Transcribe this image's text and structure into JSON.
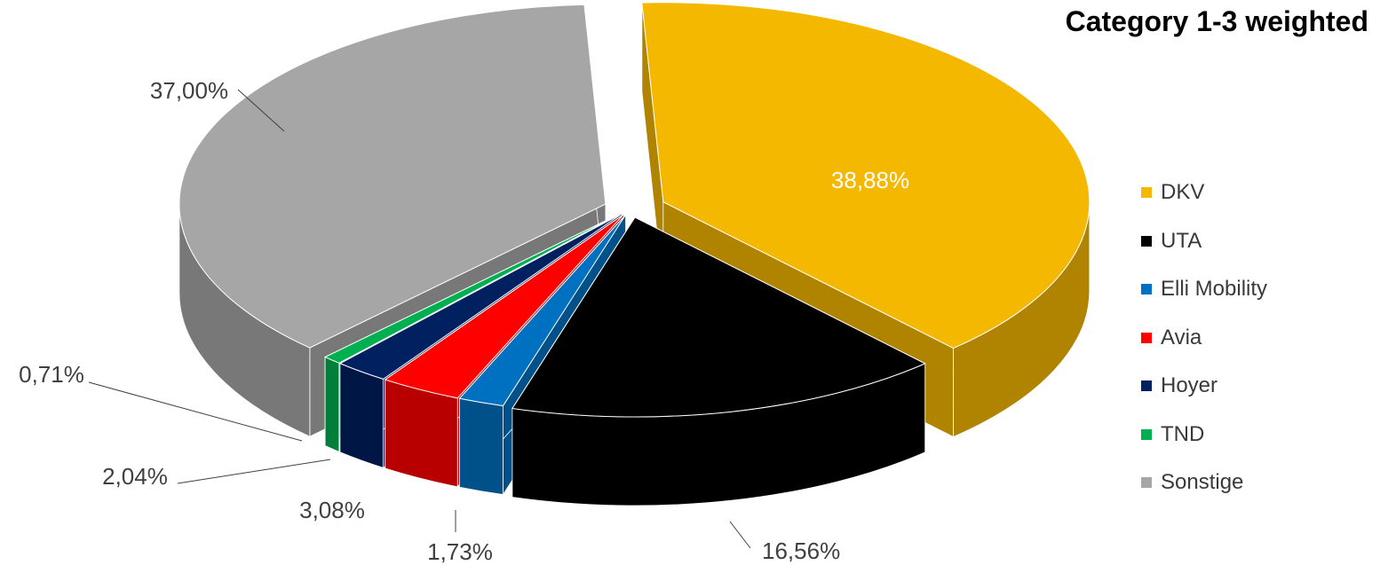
{
  "chart_data": {
    "type": "pie",
    "title": "Category 1-3 weighted",
    "three_d": true,
    "exploded": true,
    "legend_position": "right",
    "series": [
      {
        "name": "DKV",
        "value": 38.88,
        "label": "38,88%",
        "color": "#F5B800"
      },
      {
        "name": "UTA",
        "value": 16.56,
        "label": "16,56%",
        "color": "#000000"
      },
      {
        "name": "Elli Mobility",
        "value": 1.73,
        "label": "1,73%",
        "color": "#0070C0"
      },
      {
        "name": "Avia",
        "value": 3.08,
        "label": "3,08%",
        "color": "#FF0000"
      },
      {
        "name": "Hoyer",
        "value": 2.04,
        "label": "2,04%",
        "color": "#002060"
      },
      {
        "name": "TND",
        "value": 0.71,
        "label": "0,71%",
        "color": "#00B050"
      },
      {
        "name": "Sonstige",
        "value": 37.0,
        "label": "37,00%",
        "color": "#A6A6A6"
      }
    ]
  }
}
